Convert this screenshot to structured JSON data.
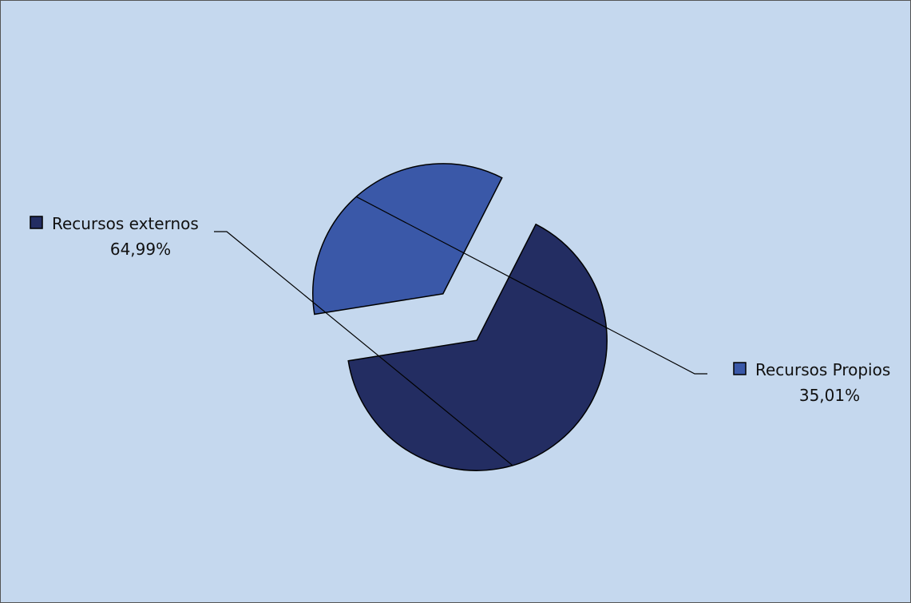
{
  "chart_data": {
    "type": "pie",
    "title": "",
    "legend": "none",
    "slices": [
      {
        "name": "Recursos externos",
        "value": 64.99,
        "label_value": "64,99%",
        "color": "#232d62"
      },
      {
        "name": "Recursos Propios",
        "value": 35.01,
        "label_value": "35,01%",
        "color": "#3a58a8"
      }
    ],
    "exploded": true
  },
  "colors": {
    "background": "#c5d8ee",
    "outline": "#000000"
  }
}
